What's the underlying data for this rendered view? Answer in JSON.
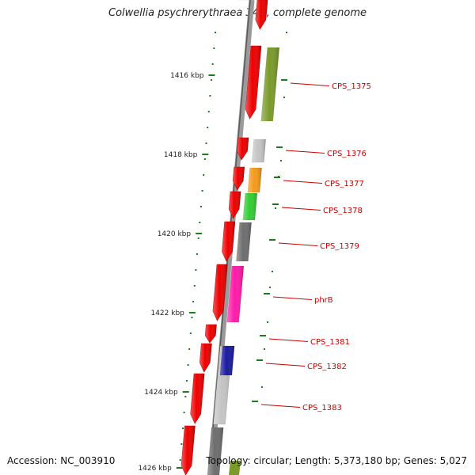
{
  "title": "Colwellia psychrerythraea 34H, complete genome",
  "footer": {
    "accession": "Accession: NC_003910",
    "summary": "Topology: circular; Length: 5,373,180 bp; Genes: 5,027"
  },
  "colors": {
    "forward_strand_cds": "#ee0000",
    "backbone": "#808080",
    "tick": "#1f7a1f",
    "gene_label": "#cc0000"
  },
  "ruler": [
    {
      "label": "1416 kbp"
    },
    {
      "label": "1418 kbp"
    },
    {
      "label": "1420 kbp"
    },
    {
      "label": "1422 kbp"
    },
    {
      "label": "1424 kbp"
    },
    {
      "label": "1426 kbp"
    }
  ],
  "genes": [
    {
      "label": "CPS_1375",
      "color": "#7a9a2a"
    },
    {
      "label": "CPS_1376",
      "color": "#c4c4c4"
    },
    {
      "label": "CPS_1377",
      "color": "#f59a1a"
    },
    {
      "label": "CPS_1378",
      "color": "#33cc33"
    },
    {
      "label": "CPS_1379",
      "color": "#6e6e6e"
    },
    {
      "label": "phrB",
      "color": "#ff1aaa"
    },
    {
      "label": "CPS_1381",
      "color": "#c4c4c4"
    },
    {
      "label": "CPS_1382",
      "color": "#c4c4c4"
    },
    {
      "label": "CPS_1383",
      "color": "#c4c4c4"
    }
  ]
}
